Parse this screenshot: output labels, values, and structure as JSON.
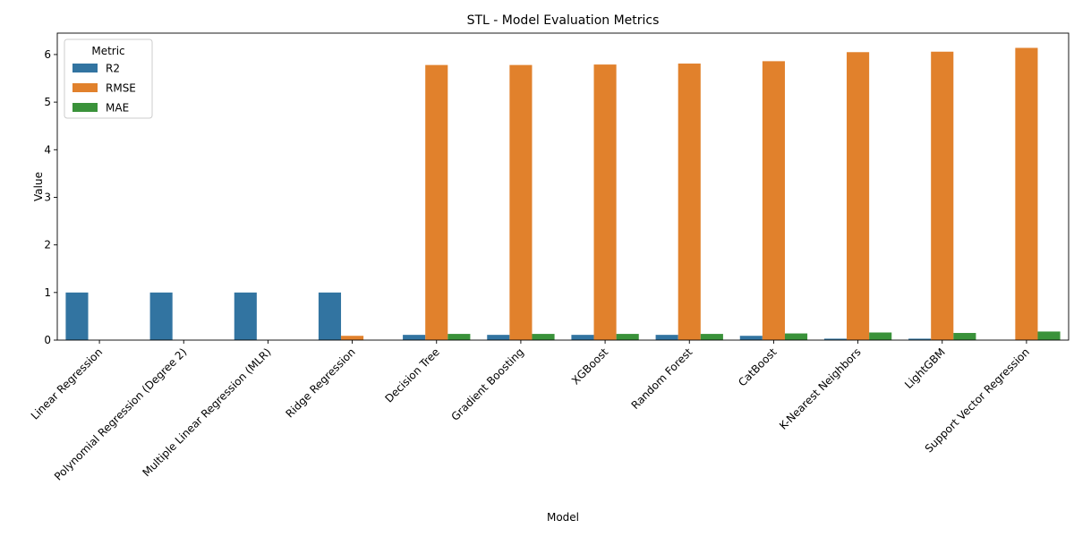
{
  "chart_data": {
    "type": "bar",
    "title": "STL - Model Evaluation Metrics",
    "xlabel": "Model",
    "ylabel": "Value",
    "ylim": [
      0,
      6.45
    ],
    "yticks": [
      "0",
      "1",
      "2",
      "3",
      "4",
      "5",
      "6"
    ],
    "grid": false,
    "legend": {
      "title": "Metric",
      "position": "top-left"
    },
    "categories": [
      "Linear Regression",
      "Polynomial Regression (Degree 2)",
      "Multiple Linear Regression (MLR)",
      "Ridge Regression",
      "Decision Tree",
      "Gradient Boosting",
      "XGBoost",
      "Random Forest",
      "CatBoost",
      "K-Nearest Neighbors",
      "LightGBM",
      "Support Vector Regression"
    ],
    "series": [
      {
        "name": "R2",
        "color": "#3274a1",
        "values": [
          1.0,
          1.0,
          1.0,
          1.0,
          0.11,
          0.11,
          0.11,
          0.11,
          0.09,
          0.03,
          0.03,
          0.0
        ]
      },
      {
        "name": "RMSE",
        "color": "#e1812c",
        "values": [
          0.0,
          0.0,
          0.0,
          0.09,
          5.78,
          5.78,
          5.79,
          5.81,
          5.86,
          6.05,
          6.06,
          6.14
        ]
      },
      {
        "name": "MAE",
        "color": "#3a923a",
        "values": [
          0.0,
          0.0,
          0.0,
          0.0,
          0.13,
          0.13,
          0.13,
          0.13,
          0.14,
          0.16,
          0.15,
          0.18
        ]
      }
    ]
  }
}
